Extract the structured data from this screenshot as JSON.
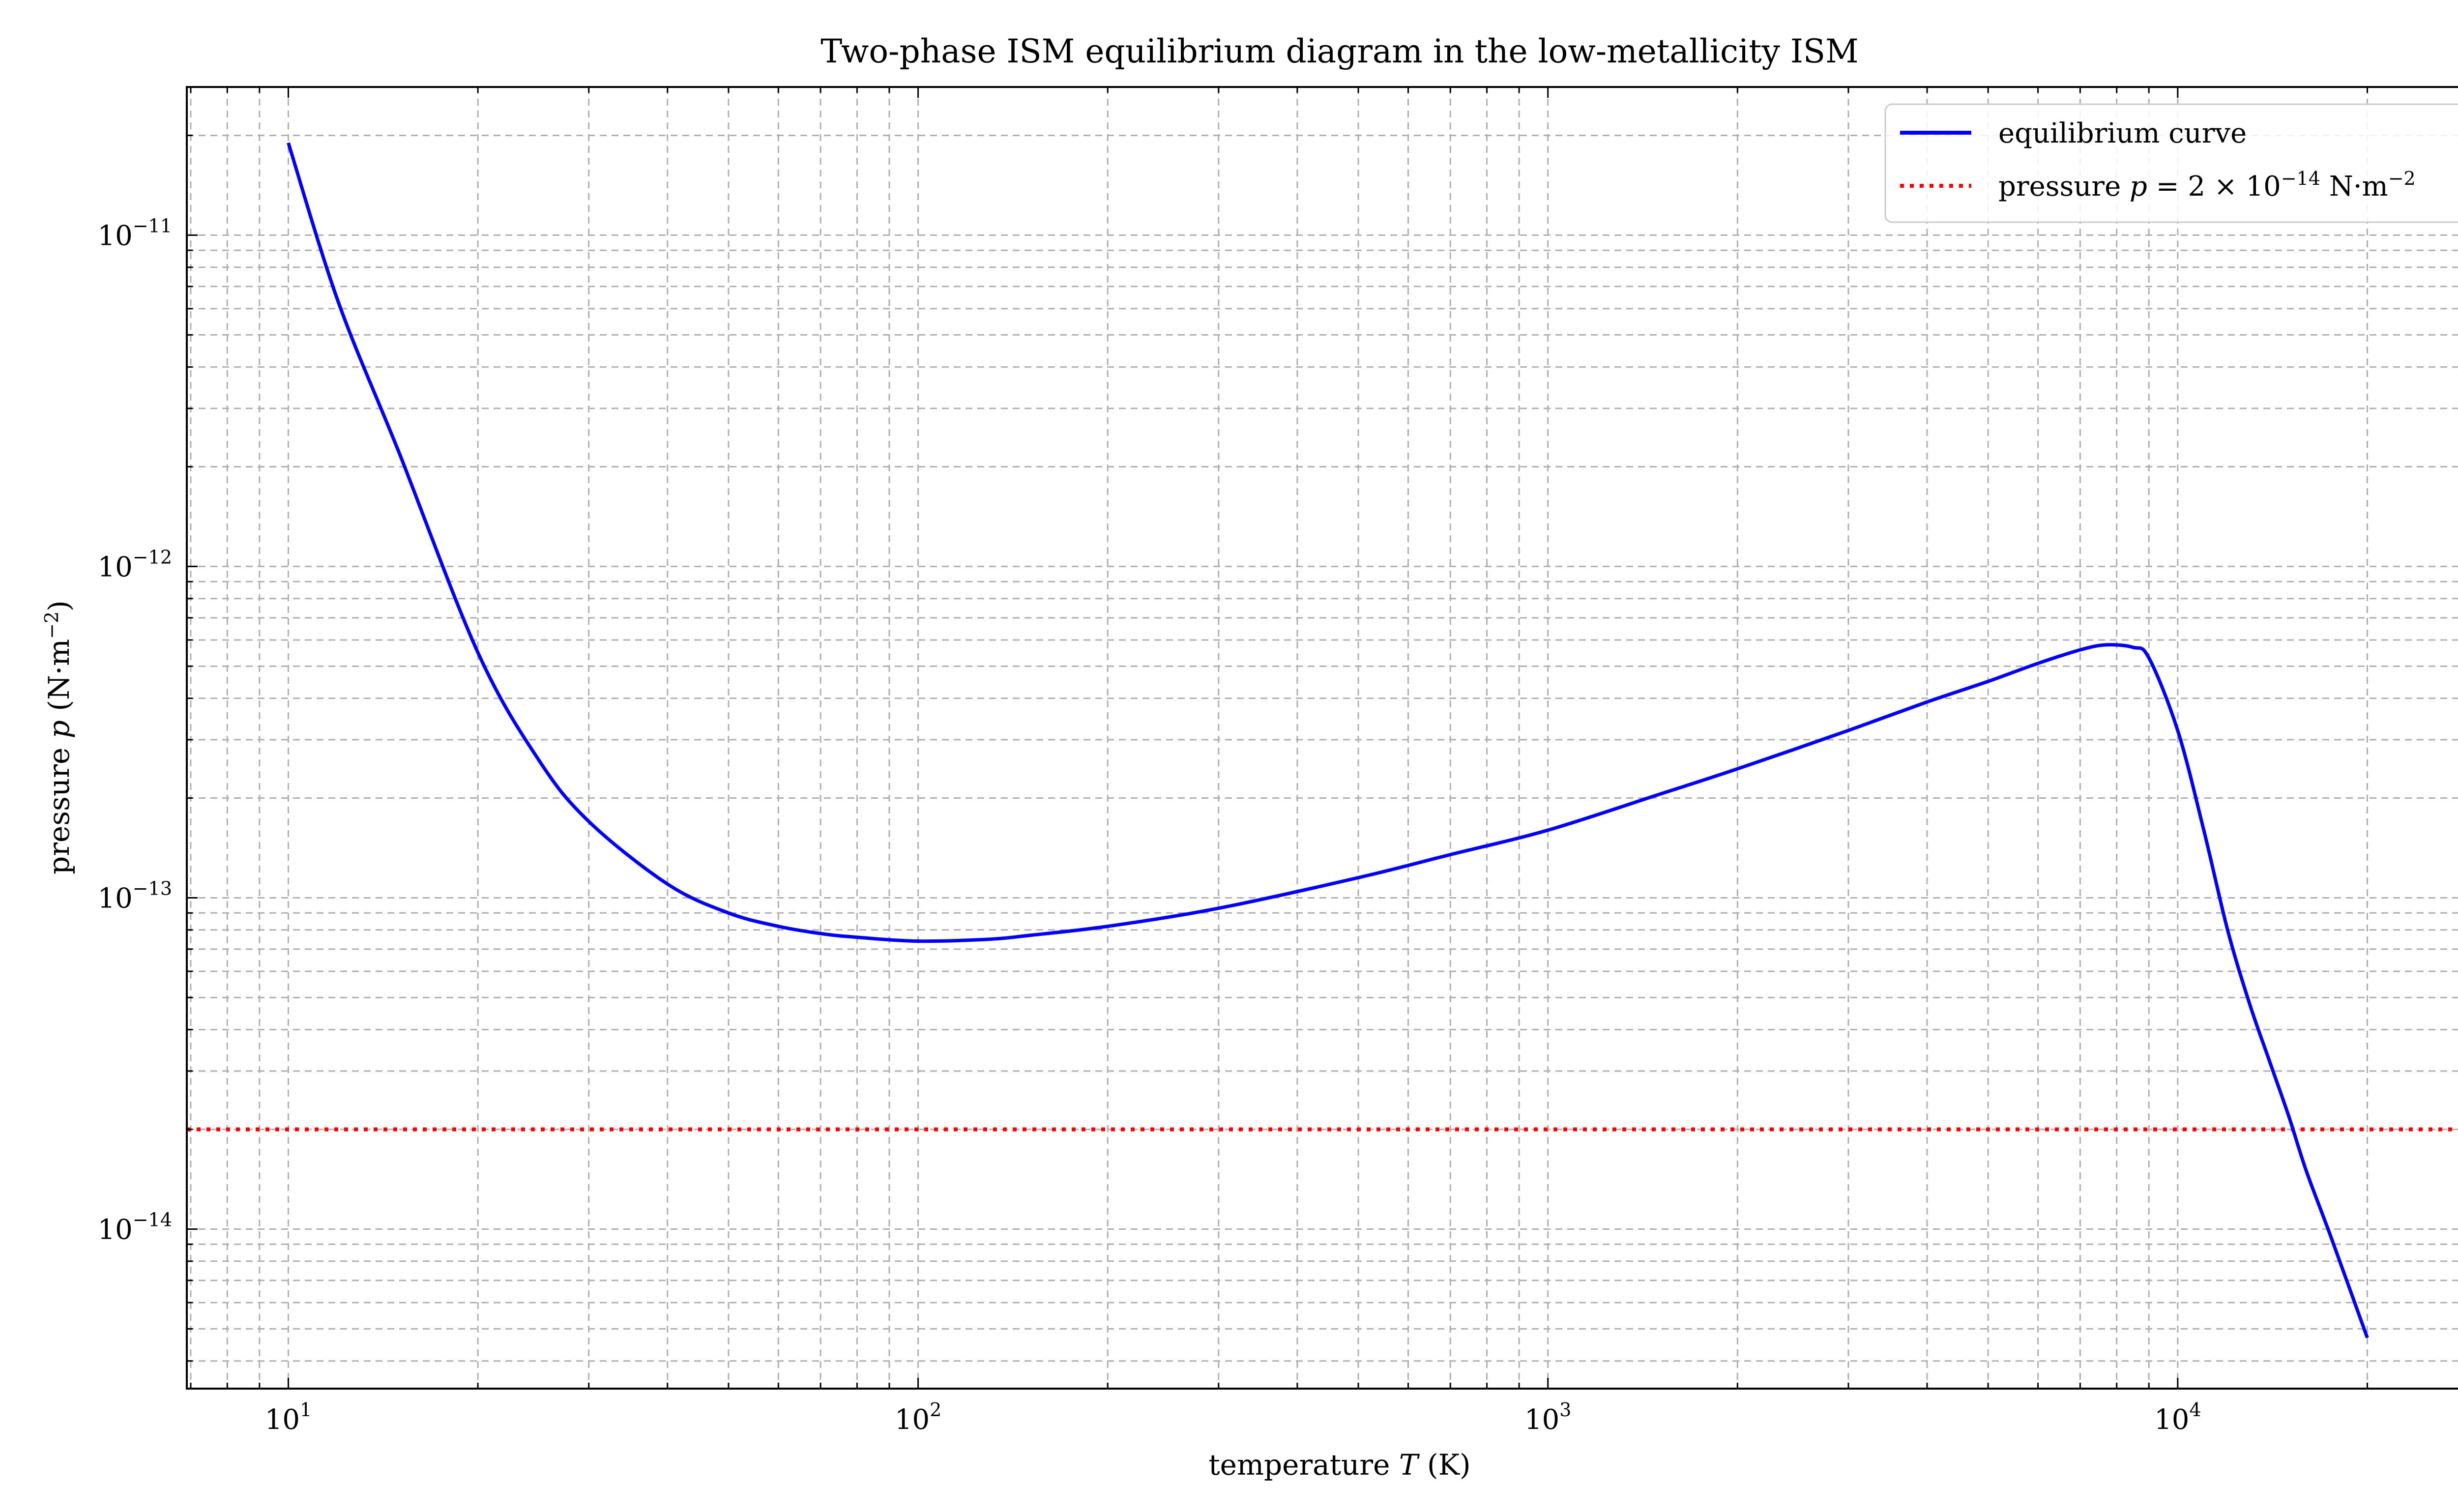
{
  "chart_data": {
    "type": "line",
    "title": "Two-phase ISM equilibrium diagram in the low-metallicity ISM",
    "xlabel": {
      "prefix": "temperature ",
      "symbol": "T",
      "suffix": " (K)"
    },
    "ylabel": {
      "prefix": "pressure ",
      "symbol": "p",
      "suffix_base": " (N·m",
      "suffix_exp": "−2",
      "suffix_close": ")"
    },
    "xscale": "log",
    "yscale": "log",
    "xlim": [
      6.9,
      31600
    ],
    "ylim": [
      3.3e-15,
      2.8e-11
    ],
    "grid": true,
    "grid_which": "both",
    "grid_style": "dashed",
    "legend_position": "top-right",
    "x_ticks": [
      {
        "value": 10,
        "base": "10",
        "exp": "1"
      },
      {
        "value": 100,
        "base": "10",
        "exp": "2"
      },
      {
        "value": 1000,
        "base": "10",
        "exp": "3"
      },
      {
        "value": 10000,
        "base": "10",
        "exp": "4"
      }
    ],
    "y_ticks": [
      {
        "value": 1e-14,
        "base": "10",
        "exp": "−14"
      },
      {
        "value": 1e-13,
        "base": "10",
        "exp": "−13"
      },
      {
        "value": 1e-12,
        "base": "10",
        "exp": "−12"
      },
      {
        "value": 1e-11,
        "base": "10",
        "exp": "−11"
      }
    ],
    "series": [
      {
        "name": "equilibrium curve",
        "color": "#0000ff",
        "style": "solid",
        "x": [
          10,
          12,
          15,
          20,
          25,
          30,
          40,
          50,
          60,
          70,
          80,
          100,
          130,
          150,
          200,
          300,
          500,
          700,
          1000,
          1500,
          2000,
          3000,
          4000,
          5000,
          6000,
          7000,
          7700,
          8500,
          9000,
          10000,
          11000,
          12000,
          13000,
          14000,
          15000,
          16000,
          17500,
          20000
        ],
        "y": [
          1.9e-11,
          6.3e-12,
          2.2e-12,
          5.5e-13,
          2.6e-13,
          1.7e-13,
          1.1e-13,
          9e-14,
          8.2e-14,
          7.8e-14,
          7.6e-14,
          7.4e-14,
          7.5e-14,
          7.7e-14,
          8.2e-14,
          9.3e-14,
          1.15e-13,
          1.35e-13,
          1.6e-13,
          2.05e-13,
          2.45e-13,
          3.2e-13,
          3.9e-13,
          4.5e-13,
          5.1e-13,
          5.6e-13,
          5.8e-13,
          5.7e-13,
          5.3e-13,
          3.2e-13,
          1.6e-13,
          8e-14,
          4.8e-14,
          3.2e-14,
          2.2e-14,
          1.5e-14,
          9.5e-15,
          4.7e-15
        ]
      }
    ],
    "reference_lines": [
      {
        "name_prefix": "pressure ",
        "name_symbol": "p",
        "name_eq": " = 2 × 10",
        "name_exp": "−14",
        "name_unit": " N·m",
        "name_unit_exp": "−2",
        "y": 2e-14,
        "color": "#ff0000",
        "style": "dotted"
      }
    ]
  }
}
